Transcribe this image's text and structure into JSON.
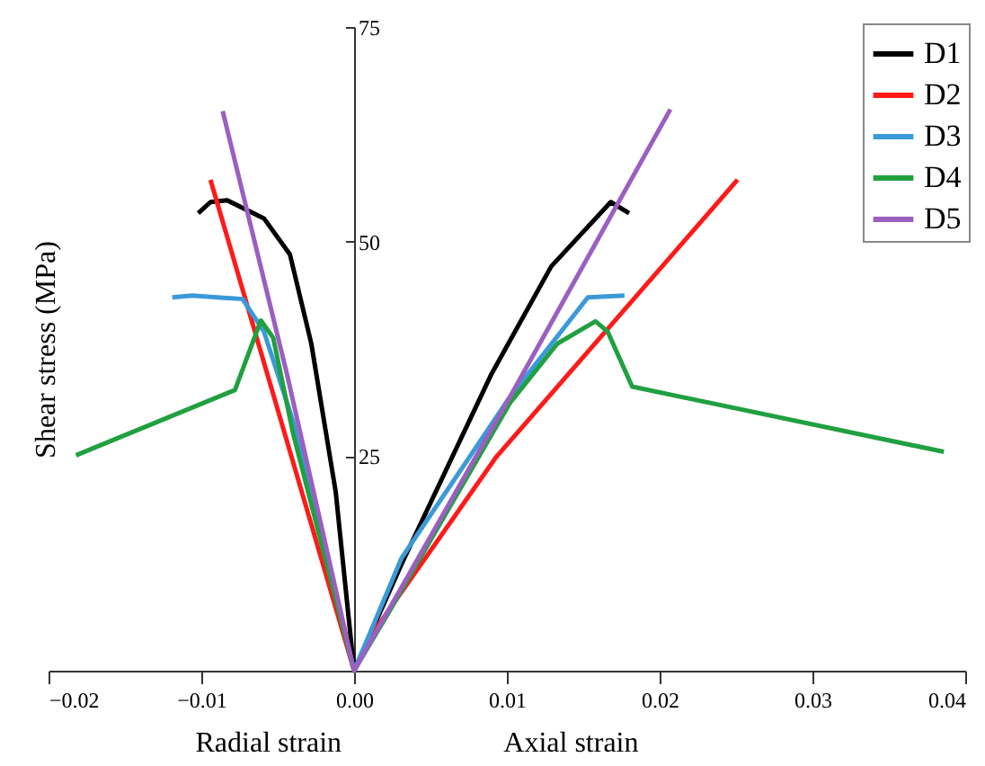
{
  "chart_data": {
    "type": "line",
    "ylabel": "Shear stress (MPa)",
    "annotations": [
      "Radial strain",
      "Axial strain"
    ],
    "xlim": [
      -0.02,
      0.04
    ],
    "xticks": [
      -0.02,
      -0.01,
      {
        "value": 0,
        "label": "0.00"
      },
      0.01,
      0.02,
      0.03,
      0.04
    ],
    "ylim": [
      0,
      75
    ],
    "yticks": [
      25,
      50,
      75
    ],
    "grid": false,
    "legend": "top right",
    "marker": "none",
    "line_style": "solid",
    "series": [
      {
        "name": "D1",
        "color": "#000000",
        "x": [
          -0.0102,
          -0.0094,
          -0.0083,
          -0.0059,
          -0.0042,
          -0.0028,
          -0.0012,
          0,
          0.0031,
          0.009,
          0.0129,
          0.0168,
          0.018
        ],
        "values": [
          53.3,
          54.6,
          54.8,
          52.7,
          48.5,
          38.1,
          20.8,
          0,
          12.4,
          34.6,
          47.1,
          54.6,
          53.3
        ]
      },
      {
        "name": "D2",
        "color": "#ff1a1a",
        "x": [
          -0.0094,
          0,
          0.0015,
          0.0093,
          0.0251
        ],
        "values": [
          57.2,
          0,
          5.1,
          24.9,
          57.2
        ]
      },
      {
        "name": "D3",
        "color": "#3a9ad9",
        "x": [
          -0.0119,
          -0.0106,
          -0.0073,
          -0.0059,
          -0.004,
          0,
          0.0031,
          0.0102,
          0.0153,
          0.0177
        ],
        "values": [
          43.5,
          43.7,
          43.3,
          39.5,
          29.1,
          0,
          13.1,
          31.9,
          43.5,
          43.7
        ]
      },
      {
        "name": "D4",
        "color": "#20a040",
        "x": [
          -0.0182,
          -0.0078,
          -0.0061,
          -0.0053,
          -0.004,
          0,
          0.0023,
          0.0102,
          0.0133,
          0.0158,
          0.0166,
          0.0182,
          0.0386
        ],
        "values": [
          25.1,
          32.7,
          40.8,
          38.8,
          27.7,
          0,
          6.9,
          31.2,
          38.1,
          40.7,
          39.5,
          33.1,
          25.5
        ]
      },
      {
        "name": "D5",
        "color": "#9b5fc0",
        "x": [
          -0.0086,
          -0.0044,
          0,
          0.0102,
          0.0207
        ],
        "values": [
          65.2,
          34.6,
          0,
          31.9,
          65.4
        ]
      }
    ]
  }
}
